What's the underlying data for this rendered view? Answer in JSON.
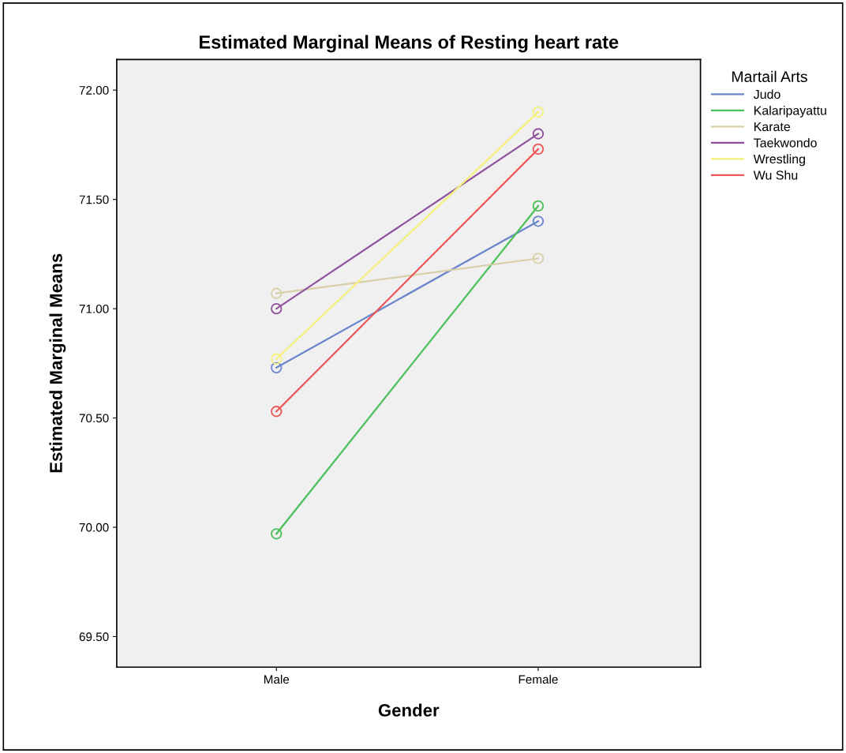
{
  "chart_data": {
    "type": "line",
    "title": "Estimated Marginal Means of Resting heart rate",
    "xlabel": "Gender",
    "ylabel": "Estimated Marginal Means",
    "legend_title": "Martail Arts",
    "categories": [
      "Male",
      "Female"
    ],
    "series": [
      {
        "name": "Judo",
        "color": "#6a85cc",
        "values": [
          70.73,
          71.4
        ]
      },
      {
        "name": "Kalaripayattu",
        "color": "#4cc05a",
        "values": [
          69.97,
          71.47
        ]
      },
      {
        "name": "Karate",
        "color": "#d8d0a8",
        "values": [
          71.07,
          71.23
        ]
      },
      {
        "name": "Taekwondo",
        "color": "#9050a0",
        "values": [
          71.0,
          71.8
        ]
      },
      {
        "name": "Wrestling",
        "color": "#f5f07a",
        "values": [
          70.77,
          71.9
        ]
      },
      {
        "name": "Wu Shu",
        "color": "#ee5555",
        "values": [
          70.53,
          71.73
        ]
      }
    ],
    "ylim": [
      69.36,
      72.14
    ],
    "yticks": [
      {
        "value": 69.5,
        "label": "69.50"
      },
      {
        "value": 70,
        "label": "70.00"
      },
      {
        "value": 70.5,
        "label": "70.50"
      },
      {
        "value": 71,
        "label": "71.00"
      },
      {
        "value": 71.5,
        "label": "71.50"
      },
      {
        "value": 72,
        "label": "72.00"
      }
    ],
    "marker": "circle",
    "line_style": "solid",
    "grid": false,
    "legend": "top right"
  }
}
